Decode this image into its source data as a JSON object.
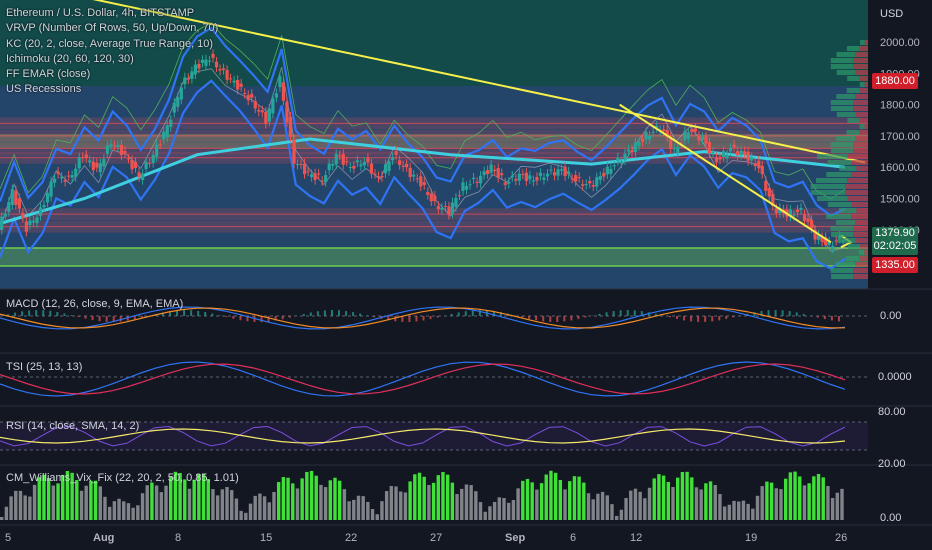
{
  "header": {
    "symbol": "Ethereum / U.S. Dollar, 4h, BITSTAMP",
    "currency": "USD"
  },
  "legend": [
    "VRVP (Number Of Rows, 50, Up/Down, 70)",
    "KC (20, 2, close, Average True Range, 10)",
    "Ichimoku (20, 60, 120, 30)",
    "FF EMAR (close)",
    "US Recessions"
  ],
  "price_tags": {
    "top": "1880.00",
    "current": "1379.90",
    "countdown": "02:02:05",
    "low": "1335.00"
  },
  "panes": {
    "macd": {
      "label": "MACD (12, 26, close, 9, EMA, EMA)",
      "zero": "0.00"
    },
    "tsi": {
      "label": "TSI (25, 13, 13)",
      "zero": "0.0000"
    },
    "rsi": {
      "label": "RSI (14, close, SMA, 14, 2)"
    },
    "vix": {
      "label": "CM_Williams_Vix_Fix (22, 20, 2, 50, 0.85, 1.01)",
      "zero": "0.00"
    }
  },
  "rsi_axis": [
    "80.00",
    "20.00"
  ],
  "colors": {
    "background": "#131722",
    "upper_zone": "#134a4a",
    "lower_zone": "#24456a",
    "trendline": "#f5f04a",
    "keltner": "#2f74f5",
    "ema": "#3fd0e0",
    "resistance": "#d44a5a",
    "support": "#6fcf4f",
    "macd_line": "#2f74f5",
    "signal_line": "#f28c28",
    "tsi_line": "#2f74f5",
    "tsi_signal": "#e0305a",
    "rsi_line": "#7b4ee0",
    "rsi_ma": "#f5e96a",
    "vix_high": "#3fe037",
    "vix_low": "#808489"
  },
  "chart_data": {
    "type": "candlestick",
    "title": "Ethereum / U.S. Dollar, 4h, BITSTAMP",
    "y_axis": {
      "unit": "USD",
      "ticks": [
        2000,
        1900,
        1800,
        1700,
        1600,
        1500,
        1400
      ],
      "tick_labels": [
        "2000.00",
        "1900.00",
        "1800.00",
        "1700.00",
        "1600.00",
        "1500.00",
        "1400.00"
      ]
    },
    "x_axis": {
      "tick_labels": [
        "5",
        "Aug",
        "8",
        "15",
        "22",
        "27",
        "Sep",
        "6",
        "12",
        "19",
        "26"
      ]
    },
    "close_path": [
      [
        0,
        1400
      ],
      [
        1,
        1520
      ],
      [
        2,
        1405
      ],
      [
        3,
        1460
      ],
      [
        4,
        1575
      ],
      [
        5,
        1560
      ],
      [
        6,
        1640
      ],
      [
        7,
        1590
      ],
      [
        8,
        1680
      ],
      [
        9,
        1640
      ],
      [
        10,
        1570
      ],
      [
        11,
        1640
      ],
      [
        12,
        1730
      ],
      [
        13,
        1860
      ],
      [
        14,
        1920
      ],
      [
        15,
        1950
      ],
      [
        16,
        1900
      ],
      [
        17,
        1860
      ],
      [
        18,
        1810
      ],
      [
        19,
        1750
      ],
      [
        20,
        1880
      ],
      [
        21,
        1620
      ],
      [
        22,
        1580
      ],
      [
        23,
        1560
      ],
      [
        24,
        1640
      ],
      [
        25,
        1600
      ],
      [
        26,
        1620
      ],
      [
        27,
        1560
      ],
      [
        28,
        1640
      ],
      [
        29,
        1590
      ],
      [
        30,
        1550
      ],
      [
        31,
        1480
      ],
      [
        32,
        1460
      ],
      [
        33,
        1540
      ],
      [
        34,
        1560
      ],
      [
        35,
        1600
      ],
      [
        36,
        1550
      ],
      [
        37,
        1575
      ],
      [
        38,
        1560
      ],
      [
        39,
        1580
      ],
      [
        40,
        1590
      ],
      [
        41,
        1560
      ],
      [
        42,
        1540
      ],
      [
        43,
        1580
      ],
      [
        44,
        1620
      ],
      [
        45,
        1660
      ],
      [
        46,
        1700
      ],
      [
        47,
        1730
      ],
      [
        48,
        1650
      ],
      [
        49,
        1720
      ],
      [
        50,
        1690
      ],
      [
        51,
        1620
      ],
      [
        52,
        1660
      ],
      [
        53,
        1640
      ],
      [
        54,
        1600
      ],
      [
        55,
        1470
      ],
      [
        56,
        1450
      ],
      [
        57,
        1460
      ],
      [
        58,
        1380
      ],
      [
        59,
        1350
      ],
      [
        60,
        1380
      ]
    ],
    "trendlines": [
      {
        "from": [
          0,
          2200
        ],
        "to": [
          60,
          1615
        ]
      },
      {
        "from": [
          44,
          1800
        ],
        "to": [
          59,
          1360
        ]
      }
    ],
    "horizontal_levels": [
      1740,
      1700,
      1660,
      1630,
      1450,
      1410
    ]
  }
}
